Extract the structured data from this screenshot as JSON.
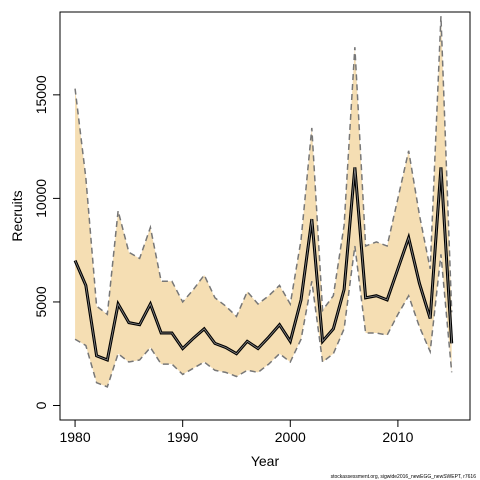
{
  "chart_data": {
    "type": "line",
    "x_label": "Year",
    "y_label": "Recruits",
    "footnote": "stockassessment.org, sigwide2016_newEGG_newSWEPT, r7616",
    "x": [
      1980,
      1981,
      1982,
      1983,
      1984,
      1985,
      1986,
      1987,
      1988,
      1989,
      1990,
      1991,
      1992,
      1993,
      1994,
      1995,
      1996,
      1997,
      1998,
      1999,
      2000,
      2001,
      2002,
      2003,
      2004,
      2005,
      2006,
      2007,
      2008,
      2009,
      2010,
      2011,
      2012,
      2013,
      2014,
      2015
    ],
    "values": [
      7000,
      5800,
      2400,
      2200,
      4900,
      4000,
      3900,
      4900,
      3500,
      3500,
      2750,
      3250,
      3700,
      3000,
      2800,
      2500,
      3100,
      2750,
      3300,
      3900,
      3100,
      5100,
      9000,
      3100,
      3700,
      5600,
      11500,
      5200,
      5300,
      5100,
      6600,
      8100,
      5900,
      4200,
      11500,
      3000
    ],
    "upper": [
      15300,
      11000,
      4800,
      4400,
      9400,
      7400,
      7100,
      8600,
      6000,
      6000,
      5000,
      5600,
      6300,
      5200,
      4800,
      4300,
      5500,
      4900,
      5300,
      5800,
      4900,
      8000,
      13400,
      4600,
      5300,
      8700,
      17300,
      7700,
      7900,
      7700,
      10000,
      12300,
      9200,
      6600,
      18800,
      4500
    ],
    "lower": [
      3200,
      2900,
      1100,
      900,
      2500,
      2100,
      2200,
      2800,
      2000,
      2000,
      1500,
      1800,
      2100,
      1700,
      1600,
      1400,
      1700,
      1600,
      2000,
      2500,
      2100,
      3200,
      6000,
      2100,
      2500,
      3700,
      7700,
      3500,
      3500,
      3400,
      4400,
      5300,
      3800,
      2600,
      7300,
      1600
    ],
    "color": "#000000",
    "band_color": "#f5deb3",
    "bound_color": "#777777",
    "xlim": [
      1978.6,
      2016.7
    ],
    "xticks": [
      1980,
      1990,
      2000,
      2010
    ],
    "ylim": [
      -700,
      19000
    ],
    "yticks": [
      0,
      5000,
      10000,
      15000
    ]
  }
}
